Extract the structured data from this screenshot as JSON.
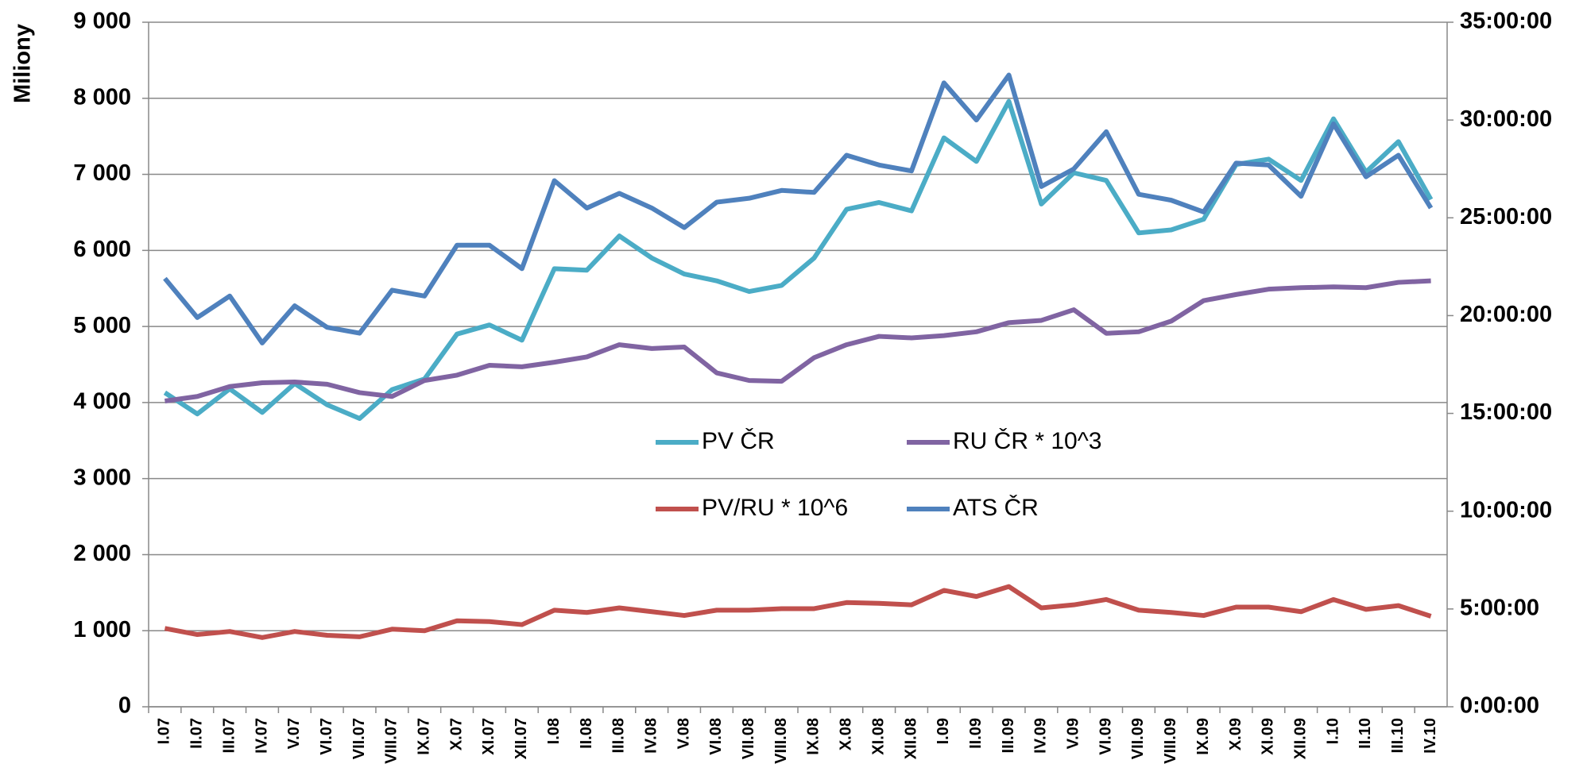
{
  "chart_data": {
    "type": "line",
    "y_label": "Miliony",
    "categories": [
      "I.07",
      "II.07",
      "III.07",
      "IV.07",
      "V.07",
      "VI.07",
      "VII.07",
      "VIII.07",
      "IX.07",
      "X.07",
      "XI.07",
      "XII.07",
      "I.08",
      "II.08",
      "III.08",
      "IV.08",
      "V.08",
      "VI.08",
      "VII.08",
      "VIII.08",
      "IX.08",
      "X.08",
      "XI.08",
      "XII.08",
      "I.09",
      "II.09",
      "III.09",
      "IV.09",
      "V.09",
      "VI.09",
      "VII.09",
      "VIII.09",
      "IX.09",
      "X.09",
      "XI.09",
      "XII.09",
      "I.10",
      "II.10",
      "III.10",
      "IV.10"
    ],
    "series": [
      {
        "name": "PV ČR",
        "color": "#4bacc6",
        "values": [
          4130,
          3850,
          4180,
          3870,
          4250,
          3970,
          3790,
          4170,
          4310,
          4900,
          5020,
          4820,
          5760,
          5740,
          6190,
          5900,
          5690,
          5600,
          5460,
          5540,
          5900,
          6540,
          6630,
          6520,
          7480,
          7170,
          7960,
          6610,
          7020,
          6920,
          6230,
          6270,
          6410,
          7130,
          7200,
          6920,
          7730,
          7030,
          7430,
          6670
        ]
      },
      {
        "name": "RU ČR * 10^3",
        "color": "#8064a2",
        "values": [
          4020,
          4080,
          4210,
          4260,
          4270,
          4240,
          4130,
          4080,
          4290,
          4360,
          4490,
          4470,
          4530,
          4600,
          4760,
          4710,
          4730,
          4390,
          4290,
          4280,
          4590,
          4760,
          4870,
          4850,
          4880,
          4930,
          5050,
          5080,
          5220,
          4910,
          4930,
          5070,
          5340,
          5420,
          5490,
          5510,
          5520,
          5510,
          5580,
          5600
        ]
      },
      {
        "name": "PV/RU * 10^6",
        "color": "#c0504d",
        "values": [
          1030,
          950,
          990,
          910,
          990,
          940,
          920,
          1020,
          1000,
          1130,
          1120,
          1080,
          1270,
          1240,
          1300,
          1250,
          1200,
          1270,
          1270,
          1290,
          1290,
          1370,
          1360,
          1340,
          1530,
          1450,
          1580,
          1300,
          1340,
          1410,
          1270,
          1240,
          1200,
          1310,
          1310,
          1250,
          1410,
          1280,
          1330,
          1190
        ]
      },
      {
        "name": "ATS ČR",
        "color": "#4f81bd",
        "axis": "y2",
        "values": [
          21.9,
          19.9,
          21.0,
          18.6,
          20.5,
          19.4,
          19.1,
          21.3,
          21.0,
          23.6,
          23.6,
          22.4,
          26.9,
          25.5,
          26.25,
          25.5,
          24.5,
          25.8,
          26.0,
          26.4,
          26.3,
          28.2,
          27.7,
          27.4,
          31.9,
          30.0,
          32.3,
          26.6,
          27.5,
          29.4,
          26.2,
          25.9,
          25.3,
          27.8,
          27.7,
          26.1,
          29.8,
          27.1,
          28.2,
          25.5
        ]
      }
    ],
    "ylim": [
      0,
      9000
    ],
    "yticks": [
      0,
      {
        "value": 1000,
        "label": "1 000"
      },
      {
        "value": 2000,
        "label": "2 000"
      },
      {
        "value": 3000,
        "label": "3 000"
      },
      {
        "value": 4000,
        "label": "4 000"
      },
      {
        "value": 5000,
        "label": "5 000"
      },
      {
        "value": 6000,
        "label": "6 000"
      },
      {
        "value": 7000,
        "label": "7 000"
      },
      {
        "value": 8000,
        "label": "8 000"
      },
      {
        "value": 9000,
        "label": "9 000"
      }
    ],
    "y2lim": [
      0,
      35
    ],
    "y2ticks": [
      {
        "value": 0,
        "label": "0:00:00"
      },
      {
        "value": 5,
        "label": "5:00:00"
      },
      {
        "value": 10,
        "label": "10:00:00"
      },
      {
        "value": 15,
        "label": "15:00:00"
      },
      {
        "value": 20,
        "label": "20:00:00"
      },
      {
        "value": 25,
        "label": "25:00:00"
      },
      {
        "value": 30,
        "label": "30:00:00"
      },
      {
        "value": 35,
        "label": "35:00:00"
      }
    ],
    "grid": true,
    "legend": "center"
  }
}
